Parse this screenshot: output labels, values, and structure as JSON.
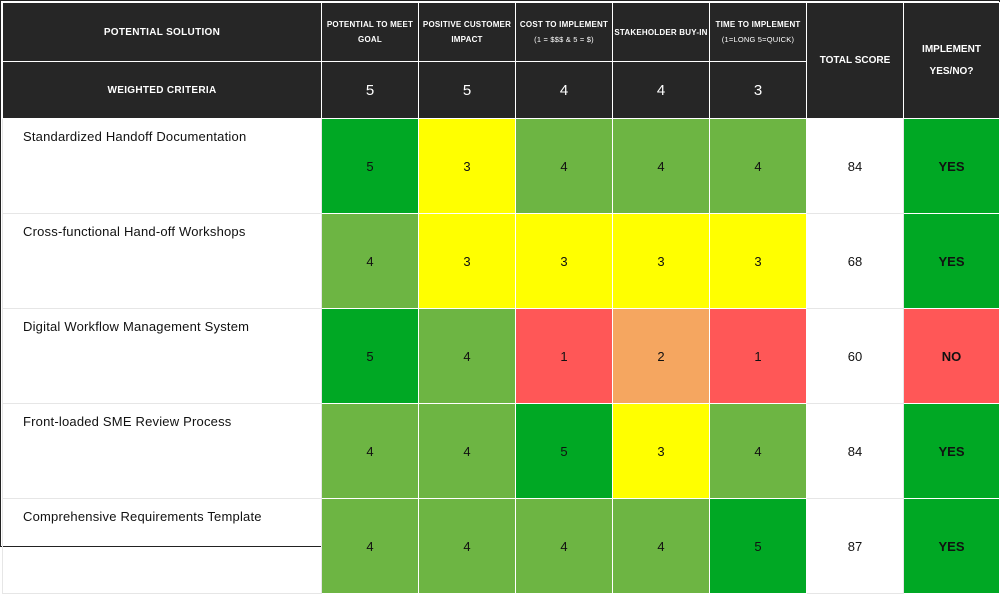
{
  "header": {
    "solution_label": "POTENTIAL SOLUTION",
    "weighted_label": "WEIGHTED CRITERIA",
    "total_label": "TOTAL SCORE",
    "implement_label": "IMPLEMENT YES/NO?",
    "criteria": [
      {
        "label": "POTENTIAL TO MEET GOAL",
        "note": "",
        "weight": "5"
      },
      {
        "label": "POSITIVE CUSTOMER IMPACT",
        "note": "",
        "weight": "5"
      },
      {
        "label": "COST TO IMPLEMENT",
        "note": "(1 = $$$ & 5 = $)",
        "weight": "4"
      },
      {
        "label": "STAKEHOLDER BUY-IN",
        "note": "",
        "weight": "4"
      },
      {
        "label": "TIME TO IMPLEMENT",
        "note": "(1=LONG 5=QUICK)",
        "weight": "3"
      }
    ]
  },
  "rows": [
    {
      "name": "Standardized Handoff Documentation",
      "scores": [
        "5",
        "3",
        "4",
        "4",
        "4"
      ],
      "total": "84",
      "implement": "YES"
    },
    {
      "name": "Cross-functional Hand-off Workshops",
      "scores": [
        "4",
        "3",
        "3",
        "3",
        "3"
      ],
      "total": "68",
      "implement": "YES"
    },
    {
      "name": "Digital Workflow Management System",
      "scores": [
        "5",
        "4",
        "1",
        "2",
        "1"
      ],
      "total": "60",
      "implement": "NO"
    },
    {
      "name": "Front-loaded SME Review Process",
      "scores": [
        "4",
        "4",
        "5",
        "3",
        "4"
      ],
      "total": "84",
      "implement": "YES"
    },
    {
      "name": "Comprehensive Requirements Template",
      "scores": [
        "4",
        "4",
        "4",
        "4",
        "5"
      ],
      "total": "87",
      "implement": "YES"
    }
  ],
  "colors": {
    "score_5": "#00a824",
    "score_4": "#6db543",
    "score_3": "#ffff00",
    "score_2": "#f5a660",
    "score_1": "#ff5757",
    "header_bg": "#262626"
  }
}
